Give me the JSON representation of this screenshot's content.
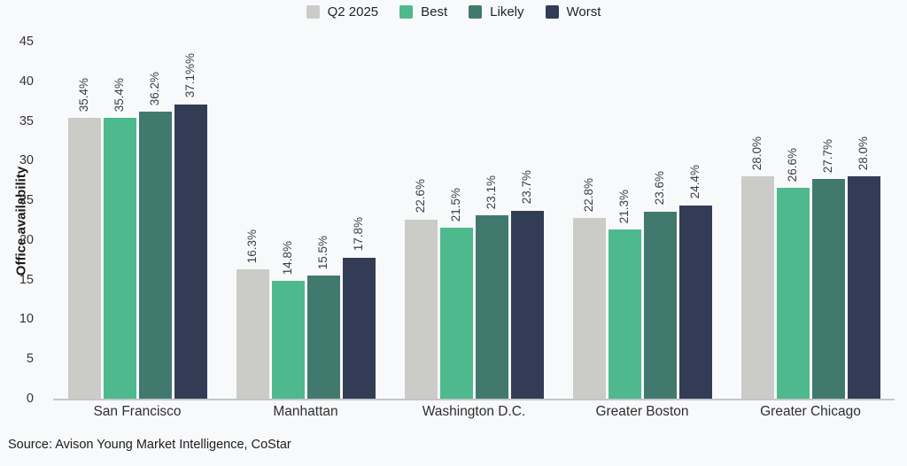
{
  "legend": {
    "items": [
      {
        "label": "Q2 2025",
        "color": "#cbccc8"
      },
      {
        "label": "Best",
        "color": "#4fb98e"
      },
      {
        "label": "Likely",
        "color": "#42796f"
      },
      {
        "label": "Worst",
        "color": "#333c55"
      }
    ]
  },
  "chart_data": {
    "type": "bar",
    "title": "",
    "ylabel": "Office availability",
    "xlabel": "",
    "ylim": [
      0,
      45
    ],
    "yticks": [
      0,
      5,
      10,
      15,
      20,
      25,
      30,
      35,
      40,
      45
    ],
    "grid": false,
    "legend_position": "top-center",
    "categories": [
      "San Francisco",
      "Manhattan",
      "Washington D.C.",
      "Greater Boston",
      "Greater Chicago"
    ],
    "series": [
      {
        "name": "Q2 2025",
        "color": "#cbccc8",
        "values": [
          35.4,
          16.3,
          22.6,
          22.8,
          28.0
        ],
        "labels": [
          "35.4%",
          "16.3%",
          "22.6%",
          "22.8%",
          "28.0%"
        ]
      },
      {
        "name": "Best",
        "color": "#4fb98e",
        "values": [
          35.4,
          14.8,
          21.5,
          21.3,
          26.6
        ],
        "labels": [
          "35.4%",
          "14.8%",
          "21.5%",
          "21.3%",
          "26.6%"
        ]
      },
      {
        "name": "Likely",
        "color": "#42796f",
        "values": [
          36.2,
          15.5,
          23.1,
          23.6,
          27.7
        ],
        "labels": [
          "36.2%",
          "15.5%",
          "23.1%",
          "23.6%",
          "27.7%"
        ]
      },
      {
        "name": "Worst",
        "color": "#333c55",
        "values": [
          37.1,
          17.8,
          23.7,
          24.4,
          28.0
        ],
        "labels": [
          "37.1%%",
          "17.8%",
          "23.7%",
          "24.4%",
          "28.0%"
        ]
      }
    ]
  },
  "source": "Source: Avison Young Market Intelligence, CoStar",
  "colors": {
    "background": "#f8f9fb",
    "axis_line": "#c3c6ca",
    "tick_text": "#333333",
    "value_label_text": "#3a3f46"
  }
}
